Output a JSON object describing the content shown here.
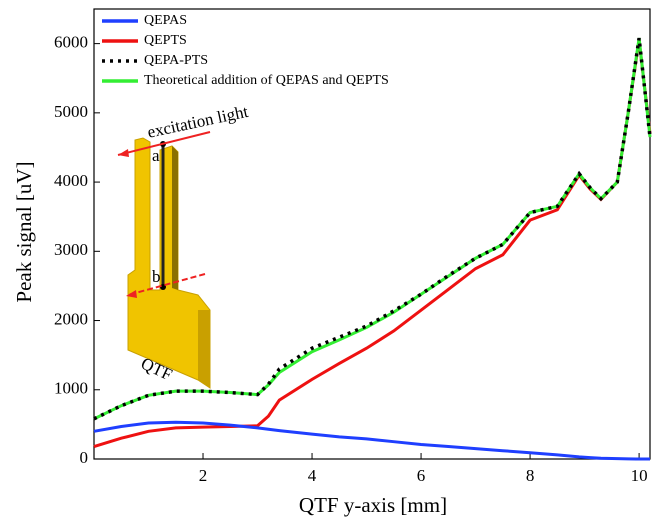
{
  "chart_data": {
    "type": "line",
    "xlabel": "QTF y-axis [mm]",
    "ylabel": "Peak signal [uV]",
    "x": [
      0,
      0.5,
      1,
      1.5,
      2,
      2.5,
      3,
      3.2,
      3.4,
      4,
      4.5,
      5,
      5.5,
      6,
      6.5,
      7,
      7.5,
      8,
      8.5,
      8.9,
      9.1,
      9.3,
      9.6,
      9.8,
      10,
      10.2
    ],
    "series": [
      {
        "name": "QEPAS",
        "color": "#1f3fff",
        "dash": "solid",
        "values": [
          400,
          470,
          520,
          530,
          520,
          490,
          450,
          430,
          410,
          360,
          320,
          290,
          250,
          210,
          180,
          150,
          120,
          90,
          60,
          30,
          20,
          10,
          5,
          2,
          0,
          0
        ]
      },
      {
        "name": "QEPTS",
        "color": "#ee1111",
        "dash": "solid",
        "values": [
          180,
          300,
          400,
          450,
          460,
          470,
          480,
          620,
          850,
          1150,
          1380,
          1600,
          1850,
          2150,
          2450,
          2750,
          2950,
          3450,
          3600,
          4100,
          3900,
          3750,
          4000,
          5000,
          6050,
          4700
        ]
      },
      {
        "name": "QEPA-PTS",
        "color": "#000000",
        "dash": "dotted",
        "values": [
          580,
          770,
          920,
          980,
          980,
          960,
          930,
          1080,
          1300,
          1600,
          1760,
          1920,
          2140,
          2380,
          2650,
          2900,
          3100,
          3560,
          3650,
          4120,
          3920,
          3760,
          4000,
          5000,
          6080,
          4650
        ]
      },
      {
        "name": "Theoretical addition of QEPAS and QEPTS",
        "color": "#33ee33",
        "dash": "solid",
        "values": [
          580,
          770,
          920,
          980,
          980,
          960,
          930,
          1070,
          1250,
          1550,
          1720,
          1900,
          2120,
          2380,
          2640,
          2900,
          3100,
          3560,
          3650,
          4120,
          3920,
          3760,
          4000,
          5000,
          6080,
          4650
        ]
      }
    ],
    "xlim": [
      0,
      10.2
    ],
    "ylim": [
      0,
      6500
    ],
    "xticks": [
      2,
      4,
      6,
      8,
      10
    ],
    "yticks": [
      0,
      1000,
      2000,
      3000,
      4000,
      5000,
      6000
    ],
    "legend": "upper-left",
    "annotations": [
      "excitation light",
      "a",
      "b",
      "QTF"
    ]
  }
}
